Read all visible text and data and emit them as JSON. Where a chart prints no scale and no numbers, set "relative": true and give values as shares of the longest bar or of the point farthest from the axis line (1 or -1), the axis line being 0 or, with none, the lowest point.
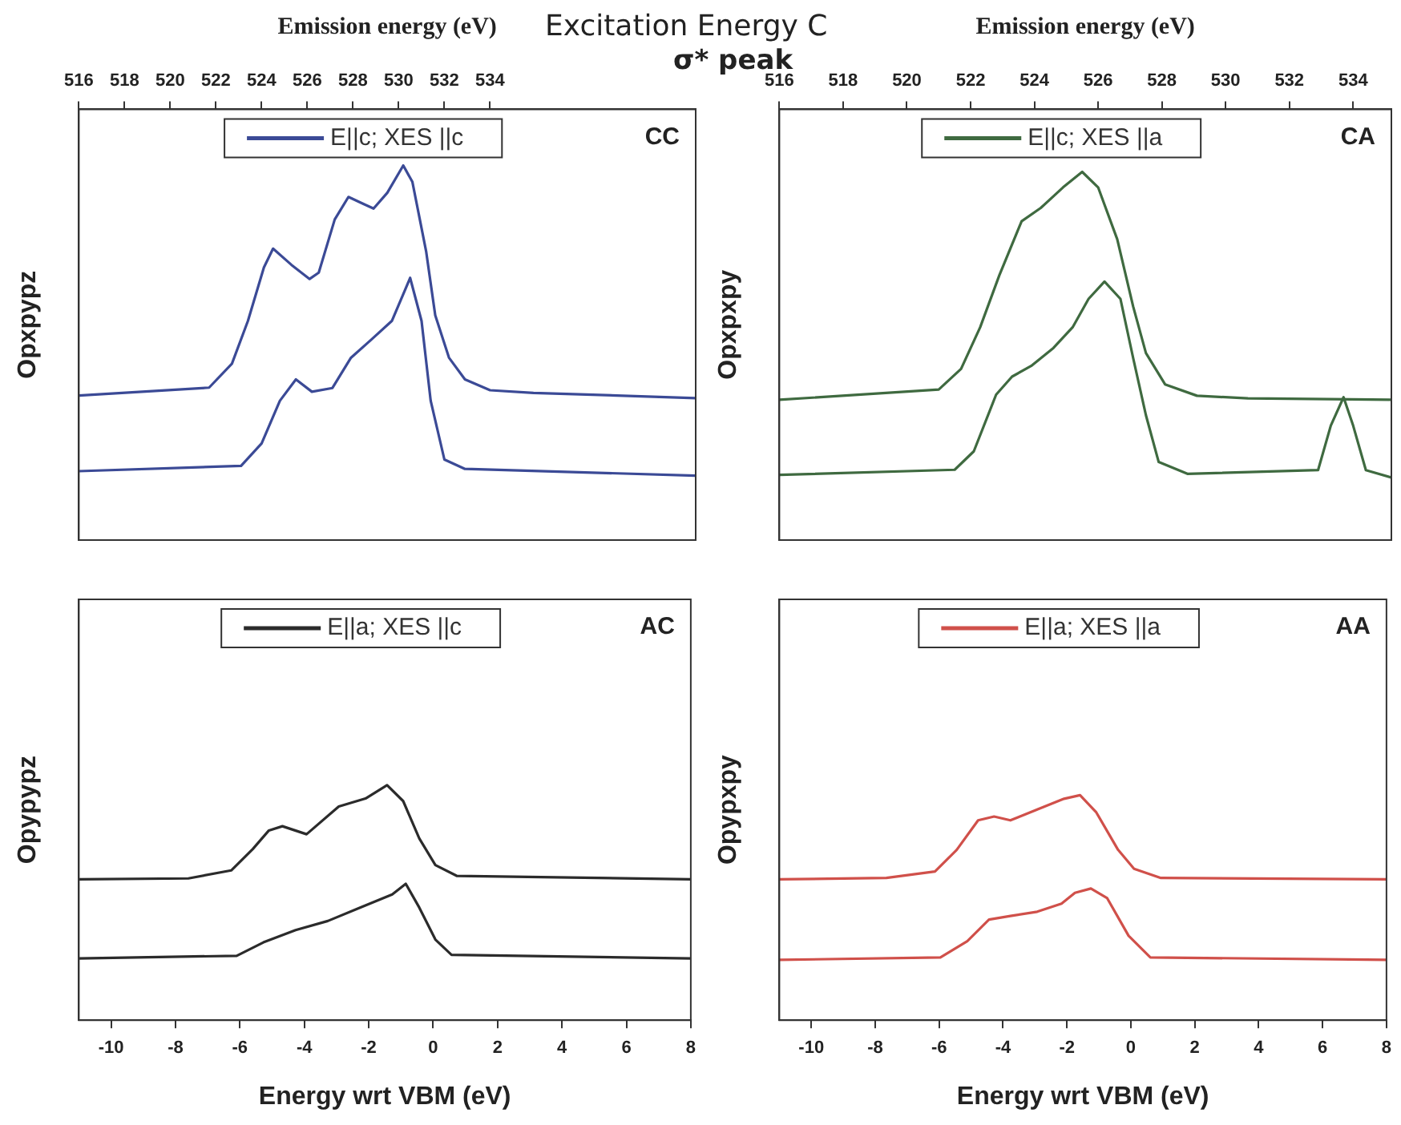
{
  "chart_data": [
    {
      "type": "line",
      "relative": true,
      "xlabel": "Emission energy (eV)",
      "ylabel": "Opxpypz",
      "xlim": [
        516,
        543
      ],
      "xticks": [
        516,
        518,
        520,
        522,
        524,
        526,
        528,
        530,
        532,
        534
      ],
      "legend": "top",
      "annotations": [
        "CC",
        "Excitation Energy C"
      ],
      "series": [
        {
          "name": "E||c; XES ||c",
          "color": "#3b4a96",
          "x": [
            516,
            521.7,
            522.7,
            523.4,
            524.1,
            524.5,
            525.3,
            526.1,
            526.5,
            527.2,
            527.8,
            528.4,
            528.9,
            529.5,
            530.2,
            530.6,
            531.2,
            531.6,
            532.2,
            532.9,
            534,
            535.9,
            543
          ],
          "values": [
            0.386,
            0.407,
            0.471,
            0.585,
            0.728,
            0.778,
            0.735,
            0.697,
            0.714,
            0.856,
            0.916,
            0.899,
            0.885,
            0.927,
            1,
            0.956,
            0.771,
            0.6,
            0.487,
            0.429,
            0.4,
            0.393,
            0.379
          ]
        },
        {
          "color": "#3b4a96",
          "x": [
            516,
            523.1,
            524,
            524.8,
            525.5,
            526.2,
            527.1,
            527.9,
            528.8,
            529.7,
            530.3,
            530.5,
            531,
            531.4,
            532,
            532.9,
            543
          ],
          "values": [
            0.184,
            0.198,
            0.258,
            0.372,
            0.429,
            0.396,
            0.406,
            0.486,
            0.535,
            0.585,
            0.671,
            0.7,
            0.585,
            0.372,
            0.215,
            0.19,
            0.172
          ]
        }
      ]
    },
    {
      "type": "line",
      "relative": true,
      "xlabel": "Emission energy (eV)",
      "ylabel": "Opxpxpy",
      "xlim": [
        516,
        535.2
      ],
      "xticks": [
        516,
        518,
        520,
        522,
        524,
        526,
        528,
        530,
        532,
        534
      ],
      "legend": "top",
      "annotations": [
        "CA",
        "σ* peak"
      ],
      "series": [
        {
          "name": "E||c; XES ||a",
          "color": "#3f6a40",
          "x": [
            516,
            521,
            521.7,
            522.3,
            522.9,
            523.6,
            524.2,
            524.9,
            525.5,
            526,
            526.6,
            527.1,
            527.5,
            528.1,
            529.1,
            530.7,
            535.2
          ],
          "values": [
            0.381,
            0.409,
            0.465,
            0.578,
            0.719,
            0.866,
            0.902,
            0.958,
            1,
            0.958,
            0.817,
            0.634,
            0.508,
            0.423,
            0.392,
            0.385,
            0.381
          ]
        },
        {
          "color": "#3f6a40",
          "x": [
            516,
            521.5,
            522.1,
            522.8,
            523.3,
            523.9,
            524.6,
            525.2,
            525.7,
            526.2,
            526.7,
            527.1,
            527.5,
            527.9,
            528.8,
            532.9,
            533.3,
            533.7,
            534,
            534.4,
            535.2
          ],
          "values": [
            0.177,
            0.191,
            0.241,
            0.395,
            0.444,
            0.473,
            0.522,
            0.578,
            0.655,
            0.702,
            0.655,
            0.494,
            0.339,
            0.212,
            0.18,
            0.19,
            0.311,
            0.388,
            0.311,
            0.19,
            0.17
          ]
        }
      ]
    },
    {
      "type": "line",
      "relative": true,
      "xlabel": "Energy wrt VBM (eV)",
      "ylabel": "Opypypz",
      "xlim": [
        -11,
        8
      ],
      "xticks": [
        -10,
        -8,
        -6,
        -4,
        -2,
        0,
        2,
        4,
        6,
        8
      ],
      "legend": "top",
      "annotations": [
        "AC"
      ],
      "series": [
        {
          "name": "E||a; XES ||c",
          "color": "#2b2b2b",
          "x": [
            -11,
            -7.6,
            -6.27,
            -5.6,
            -5.1,
            -4.68,
            -3.93,
            -2.93,
            -2.1,
            -1.43,
            -0.93,
            -0.43,
            0.07,
            0.73,
            8
          ],
          "values": [
            0.599,
            0.603,
            0.637,
            0.728,
            0.807,
            0.825,
            0.791,
            0.909,
            0.943,
            1,
            0.932,
            0.773,
            0.66,
            0.614,
            0.599
          ]
        },
        {
          "color": "#2b2b2b",
          "x": [
            -11,
            -6.1,
            -5.27,
            -4.27,
            -3.27,
            -2.27,
            -1.27,
            -0.85,
            -0.43,
            0.07,
            0.57,
            8
          ],
          "values": [
            0.263,
            0.274,
            0.331,
            0.383,
            0.422,
            0.479,
            0.535,
            0.58,
            0.479,
            0.343,
            0.278,
            0.263
          ]
        }
      ]
    },
    {
      "type": "line",
      "relative": true,
      "xlabel": "Energy wrt VBM (eV)",
      "ylabel": "Opypxpy",
      "xlim": [
        -11,
        8
      ],
      "xticks": [
        -10,
        -8,
        -6,
        -4,
        -2,
        0,
        2,
        4,
        6,
        8
      ],
      "legend": "top",
      "annotations": [
        "AA"
      ],
      "series": [
        {
          "name": "E||a; XES ||a",
          "color": "#d0504a",
          "x": [
            -11,
            -7.65,
            -6.13,
            -5.45,
            -4.78,
            -4.28,
            -3.77,
            -2.93,
            -2.09,
            -1.59,
            -1.08,
            -0.4,
            0.1,
            0.94,
            8
          ],
          "values": [
            0.626,
            0.632,
            0.661,
            0.757,
            0.888,
            0.905,
            0.888,
            0.936,
            0.984,
            1,
            0.923,
            0.757,
            0.673,
            0.632,
            0.626
          ]
        },
        {
          "color": "#d0504a",
          "x": [
            -11,
            -5.96,
            -5.12,
            -4.44,
            -3.77,
            -2.93,
            -2.17,
            -1.75,
            -1.25,
            -0.74,
            -0.07,
            0.61,
            8
          ],
          "values": [
            0.268,
            0.279,
            0.351,
            0.447,
            0.463,
            0.482,
            0.518,
            0.566,
            0.585,
            0.542,
            0.375,
            0.279,
            0.268
          ]
        }
      ]
    }
  ]
}
